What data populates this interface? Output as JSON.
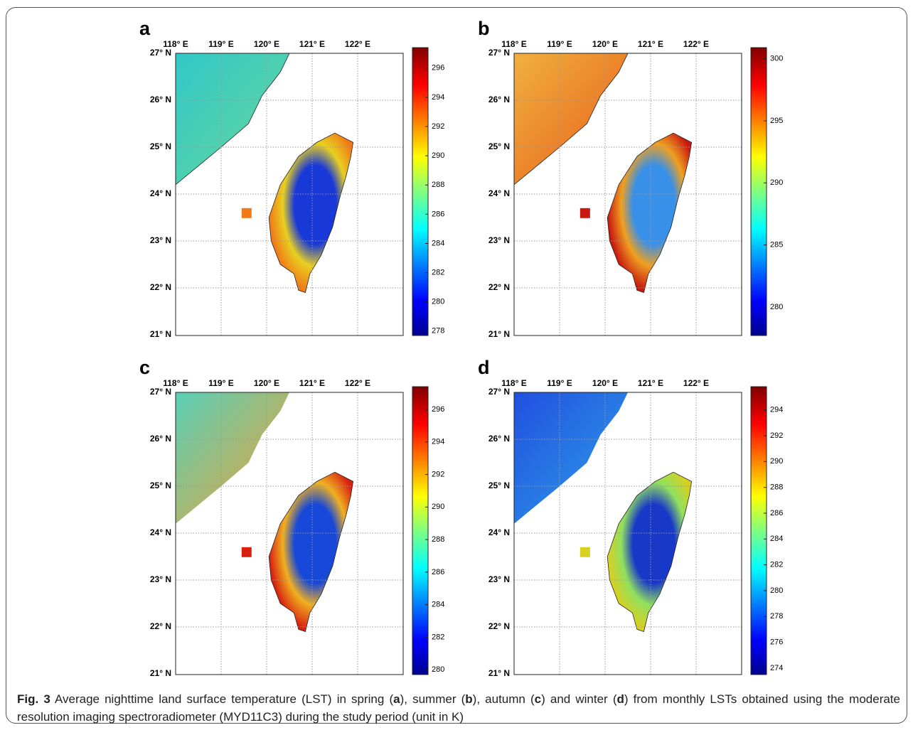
{
  "panels": [
    {
      "label": "a",
      "lon_ticks": [
        "118° E",
        "119° E",
        "120° E",
        "121° E",
        "122° E"
      ],
      "lat_ticks": [
        "27° N",
        "26° N",
        "25° N",
        "24° N",
        "23° N",
        "22° N",
        "21° N"
      ],
      "colorbar": {
        "lim": [
          277.7,
          297.4
        ],
        "ticks": [
          278,
          280,
          282,
          284,
          286,
          288,
          290,
          292,
          294,
          296
        ]
      }
    },
    {
      "label": "b",
      "lon_ticks": [
        "118° E",
        "119° E",
        "120° E",
        "121° E",
        "122° E"
      ],
      "lat_ticks": [
        "27° N",
        "26° N",
        "25° N",
        "24° N",
        "23° N",
        "22° N",
        "21° N"
      ],
      "colorbar": {
        "lim": [
          277.7,
          300.9
        ],
        "ticks": [
          280,
          285,
          290,
          295,
          300
        ]
      }
    },
    {
      "label": "c",
      "lon_ticks": [
        "118° E",
        "119° E",
        "120° E",
        "121° E",
        "122° E"
      ],
      "lat_ticks": [
        "27° N",
        "26° N",
        "25° N",
        "24° N",
        "23° N",
        "22° N",
        "21° N"
      ],
      "colorbar": {
        "lim": [
          279.7,
          297.4
        ],
        "ticks": [
          280,
          282,
          284,
          286,
          288,
          290,
          292,
          294,
          296
        ]
      }
    },
    {
      "label": "d",
      "lon_ticks": [
        "118° E",
        "119° E",
        "120° E",
        "121° E",
        "122° E"
      ],
      "lat_ticks": [
        "27° N",
        "26° N",
        "25° N",
        "24° N",
        "23° N",
        "22° N",
        "21° N"
      ],
      "colorbar": {
        "lim": [
          273.5,
          295.8
        ],
        "ticks": [
          274,
          276,
          278,
          280,
          282,
          284,
          286,
          288,
          290,
          292,
          294
        ]
      }
    }
  ],
  "caption": {
    "label": "Fig. 3",
    "text": [
      " Average nighttime land surface temperature (LST) in spring (",
      "a",
      "), summer (",
      "b",
      "), autumn (",
      "c",
      ") and winter (",
      "d",
      ") from monthly LSTs obtained using the moderate resolution imaging spectroradiometer (MYD11C3) during the study period (unit in K)"
    ]
  }
}
